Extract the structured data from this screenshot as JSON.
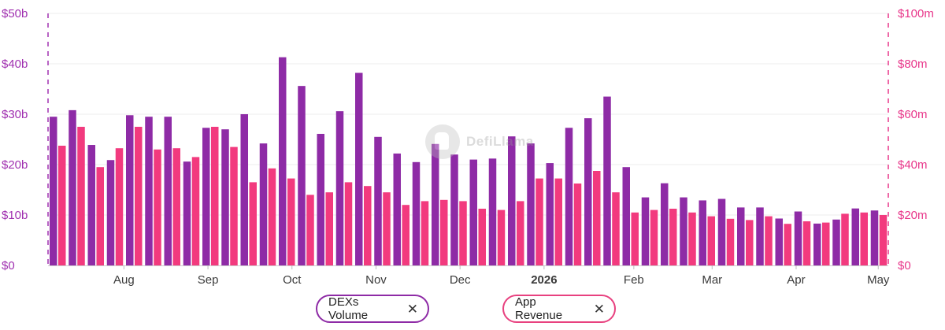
{
  "colors": {
    "dex": "#8E2BA6",
    "revenue": "#F23A7E",
    "left_axis": "#A030B0",
    "right_axis": "#E8368A",
    "grid": "#EEEEEE"
  },
  "watermark": {
    "icon": "llama-icon",
    "text": "DefiLlama"
  },
  "legend": [
    {
      "label": "DEXs Volume",
      "close_icon": "close-icon",
      "close_glyph": "✕"
    },
    {
      "label": "App Revenue",
      "close_icon": "close-icon",
      "close_glyph": "✕"
    }
  ],
  "chart_data": {
    "type": "bar",
    "grid": true,
    "legend_position": "bottom-center",
    "y_left": {
      "ticks": [
        "$0",
        "$10b",
        "$20b",
        "$30b",
        "$40b",
        "$50b"
      ],
      "range": [
        0,
        50
      ],
      "unit": "b"
    },
    "y_right": {
      "ticks": [
        "$0",
        "$20m",
        "$40m",
        "$60m",
        "$80m",
        "$100m"
      ],
      "range": [
        0,
        100
      ],
      "unit": "m"
    },
    "x_ticks": [
      {
        "label": "Aug",
        "bold": false,
        "after_index": 3.5
      },
      {
        "label": "Sep",
        "bold": false,
        "after_index": 7.9
      },
      {
        "label": "Oct",
        "bold": false,
        "after_index": 12.3
      },
      {
        "label": "Nov",
        "bold": false,
        "after_index": 16.7
      },
      {
        "label": "Dec",
        "bold": false,
        "after_index": 21.1
      },
      {
        "label": "2026",
        "bold": true,
        "after_index": 25.5
      },
      {
        "label": "Feb",
        "bold": false,
        "after_index": 30.2
      },
      {
        "label": "Mar",
        "bold": false,
        "after_index": 34.3
      },
      {
        "label": "Apr",
        "bold": false,
        "after_index": 38.7
      },
      {
        "label": "May",
        "bold": false,
        "after_index": 43.0
      }
    ],
    "series": [
      {
        "name": "DEXs Volume",
        "axis": "left",
        "values": [
          29.5,
          30.8,
          23.9,
          20.9,
          29.8,
          29.5,
          29.5,
          20.6,
          27.3,
          27.0,
          30.0,
          24.2,
          41.3,
          35.6,
          26.1,
          30.6,
          38.2,
          25.5,
          22.2,
          20.5,
          24.1,
          22.0,
          21.0,
          21.2,
          25.6,
          24.2,
          20.3,
          27.3,
          29.2,
          33.5,
          19.5,
          13.5,
          16.3,
          13.5,
          12.9,
          13.2,
          11.5,
          11.5,
          9.3,
          10.7,
          8.3,
          9.1,
          11.3,
          10.9
        ]
      },
      {
        "name": "App Revenue",
        "axis": "right",
        "values": [
          47.5,
          55.0,
          39.0,
          46.5,
          55.0,
          46.0,
          46.5,
          43.0,
          55.0,
          47.0,
          33.0,
          38.5,
          34.5,
          28.0,
          29.0,
          33.0,
          31.5,
          29.0,
          24.0,
          25.5,
          26.0,
          25.5,
          22.5,
          22.0,
          25.5,
          34.5,
          34.5,
          32.5,
          37.5,
          29.0,
          21.0,
          22.0,
          22.5,
          21.0,
          19.5,
          18.5,
          18.0,
          19.5,
          16.5,
          17.5,
          17.0,
          20.5,
          21.0,
          20.0
        ]
      }
    ]
  }
}
